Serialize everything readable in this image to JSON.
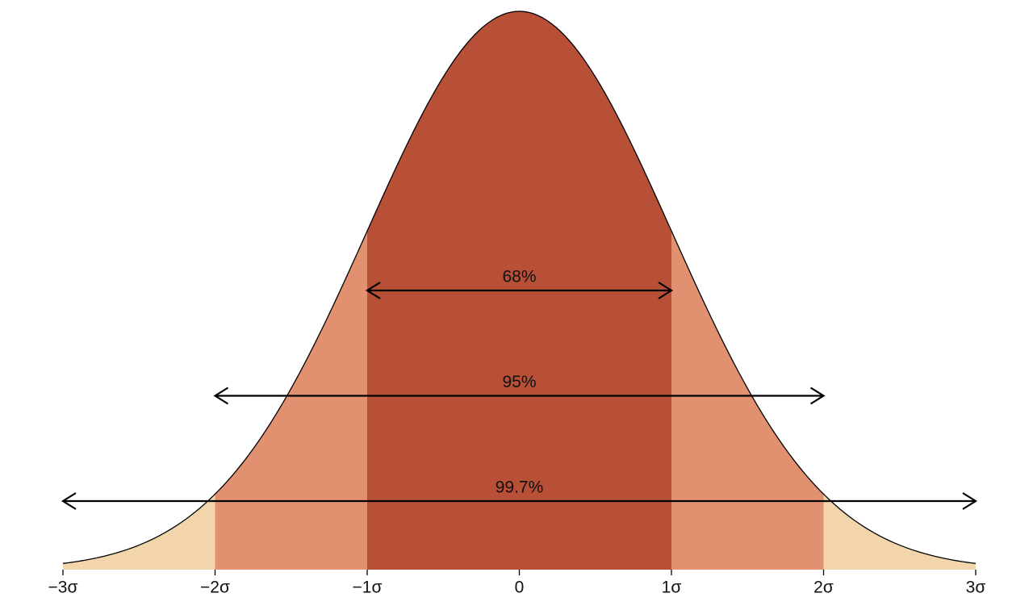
{
  "chart_data": {
    "type": "normal-bands",
    "xlim": [
      -3,
      3
    ],
    "xticks": [
      {
        "value": -3,
        "label": "−3σ"
      },
      {
        "value": -2,
        "label": "−2σ"
      },
      {
        "value": -1,
        "label": "−1σ"
      },
      0,
      {
        "value": 1,
        "label": "1σ"
      },
      {
        "value": 2,
        "label": "2σ"
      },
      {
        "value": 3,
        "label": "3σ"
      }
    ],
    "ranges": [
      [
        -1,
        1
      ],
      [
        -2,
        2
      ],
      [
        -3,
        3
      ]
    ],
    "values": [
      68,
      95,
      99.7
    ],
    "value_labels": [
      "68%",
      "95%",
      "99.7%"
    ],
    "colors": [
      "#b84f37",
      "#e19070",
      "#f2d5aa"
    ]
  }
}
